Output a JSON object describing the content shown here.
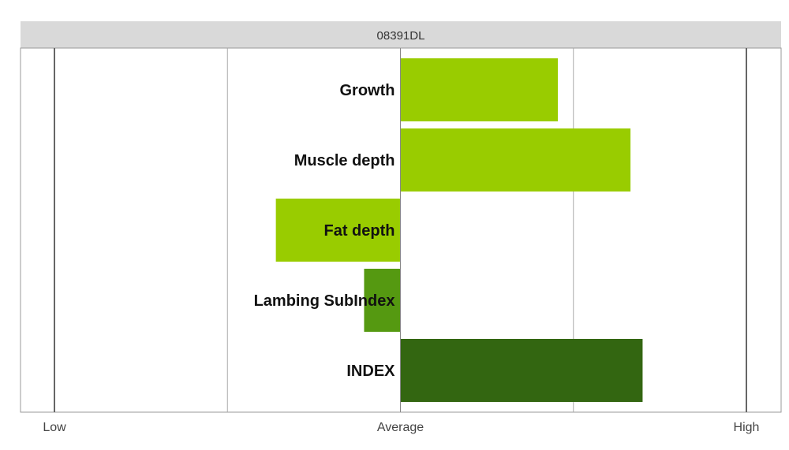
{
  "header": {
    "title": "08391DL"
  },
  "chart_data": {
    "type": "bar",
    "orientation": "horizontal",
    "title": "08391DL",
    "categories": [
      "Growth",
      "Muscle depth",
      "Fat depth",
      "Lambing SubIndex",
      "INDEX"
    ],
    "values": [
      0.91,
      1.33,
      -0.72,
      -0.21,
      1.4
    ],
    "colors": [
      "#99cc00",
      "#99cc00",
      "#99cc00",
      "#559911",
      "#336611"
    ],
    "xlim": [
      -2,
      2
    ],
    "x_ticks": [
      {
        "value": -2,
        "label": "Low"
      },
      {
        "value": -1,
        "label": ""
      },
      {
        "value": 0,
        "label": "Average"
      },
      {
        "value": 1,
        "label": ""
      },
      {
        "value": 2,
        "label": "High"
      }
    ],
    "grid": true
  }
}
